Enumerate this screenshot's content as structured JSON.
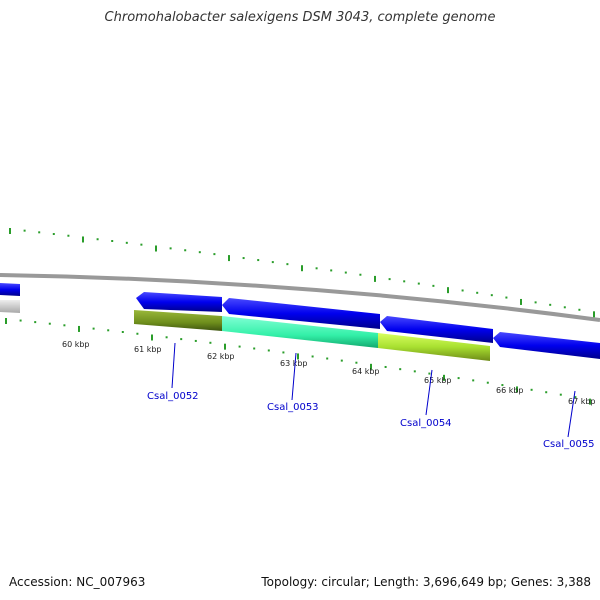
{
  "title": "Chromohalobacter salexigens DSM 3043, complete genome",
  "footer": {
    "accession": "Accession: NC_007963",
    "topology": "Topology: circular; Length: 3,696,649 bp; Genes: 3,388"
  },
  "colors": {
    "background": "#ffffff",
    "backbone": "#888888",
    "tick": "#2a9d2a",
    "gene_forward_blue": "#0a0af0",
    "gene_olive": "#7a9a20",
    "gene_aqua": "#33ffb0",
    "gene_lime": "#b0f040",
    "gene_grey": "#c8c8c8",
    "gene_label": "#0000cc"
  },
  "scale_labels": [
    "60 kbp",
    "61 kbp",
    "62 kbp",
    "63 kbp",
    "64 kbp",
    "65 kbp",
    "66 kbp",
    "67 kbp"
  ],
  "genes": [
    {
      "label": "Csal_0052"
    },
    {
      "label": "Csal_0053"
    },
    {
      "label": "Csal_0054"
    },
    {
      "label": "Csal_0055"
    }
  ]
}
